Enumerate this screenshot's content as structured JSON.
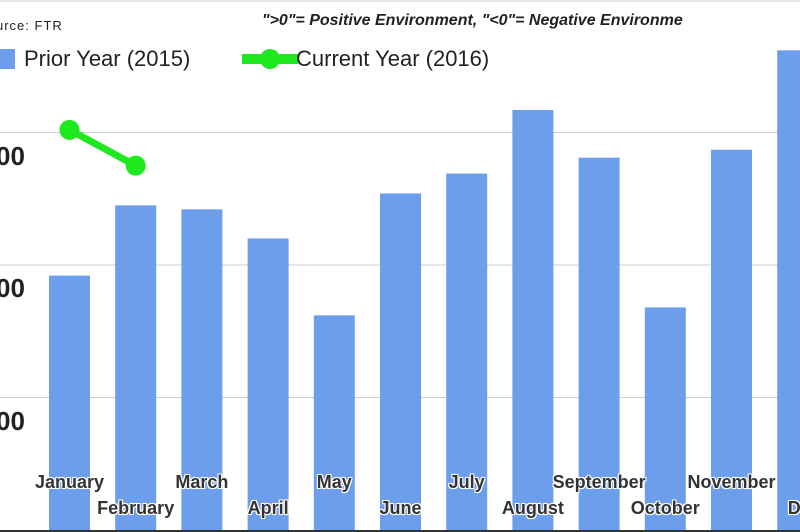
{
  "chart_data": {
    "type": "bar",
    "source_note": "urce: FTR",
    "annotation": "\">0\"= Positive Environment, \"<0\"= Negative Environme",
    "categories": [
      "January",
      "February",
      "March",
      "April",
      "May",
      "June",
      "July",
      "August",
      "September",
      "October",
      "November",
      "December"
    ],
    "category_labels_visible": [
      "January",
      "February",
      "March",
      "April",
      "May",
      "June",
      "July",
      "August",
      "September",
      "October",
      "November",
      "Dec"
    ],
    "series": [
      {
        "name": "Prior Year (2015)",
        "type": "bar",
        "color": "#6d9eeb",
        "values": [
          1.92,
          2.45,
          2.42,
          2.2,
          1.62,
          2.54,
          2.69,
          3.17,
          2.81,
          1.68,
          2.87,
          3.62
        ]
      },
      {
        "name": "Current Year (2016)",
        "type": "line",
        "color": "#1ee81e",
        "values": [
          3.02,
          2.75,
          null,
          null,
          null,
          null,
          null,
          null,
          null,
          null,
          null,
          null
        ]
      }
    ],
    "legend": [
      "Prior Year (2015)",
      "Current Year (2016)"
    ],
    "legend_placement": "top-left",
    "yticks": [
      {
        "value": 3,
        "label": "00"
      },
      {
        "value": 2,
        "label": "00"
      },
      {
        "value": 1,
        "label": "00"
      }
    ],
    "ylim": [
      0,
      4
    ],
    "grid": true
  }
}
